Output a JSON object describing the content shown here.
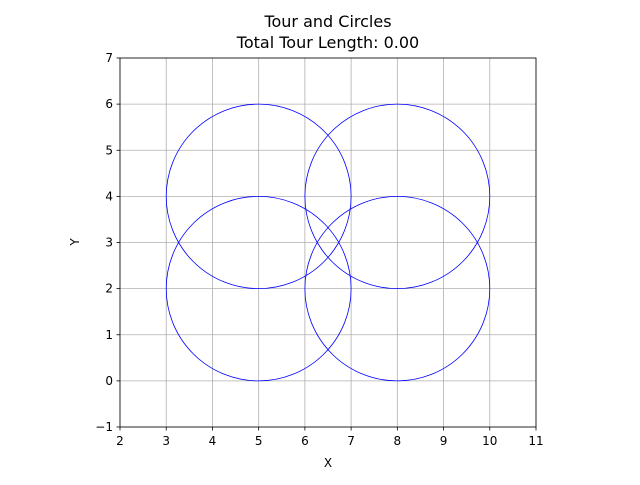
{
  "chart_data": {
    "type": "scatter",
    "title": "Tour and Circles",
    "subtitle": "Total Tour Length: 0.00",
    "xlabel": "X",
    "ylabel": "Y",
    "xlim": [
      2,
      11
    ],
    "ylim": [
      -1,
      7
    ],
    "xticks": [
      2,
      3,
      4,
      5,
      6,
      7,
      8,
      9,
      10,
      11
    ],
    "yticks": [
      -1,
      0,
      1,
      2,
      3,
      4,
      5,
      6,
      7
    ],
    "xtick_labels": [
      "2",
      "3",
      "4",
      "5",
      "6",
      "7",
      "8",
      "9",
      "10",
      "11"
    ],
    "ytick_labels": [
      "−1",
      "0",
      "1",
      "2",
      "3",
      "4",
      "5",
      "6",
      "7"
    ],
    "grid": true,
    "legend": "none",
    "circle_color": "#0000ff",
    "grid_color": "#b0b0b0",
    "circles": [
      {
        "cx": 5,
        "cy": 4,
        "r": 2
      },
      {
        "cx": 8,
        "cy": 4,
        "r": 2
      },
      {
        "cx": 5,
        "cy": 2,
        "r": 2
      },
      {
        "cx": 8,
        "cy": 2,
        "r": 2
      }
    ],
    "tour": {
      "points": [],
      "length": 0.0
    }
  }
}
